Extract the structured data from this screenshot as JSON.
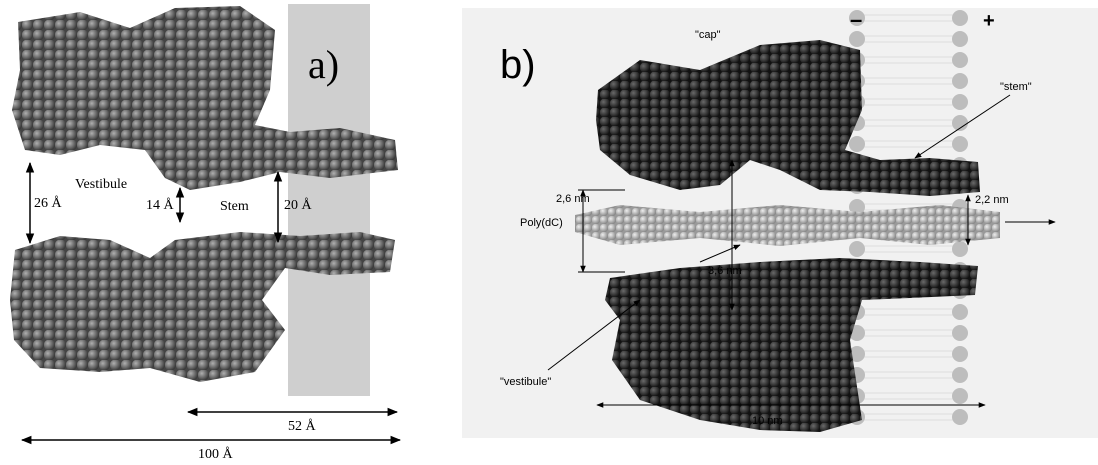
{
  "panel_a": {
    "label": "a)",
    "vestibule": "Vestibule",
    "stem": "Stem",
    "dims": [
      "26 Å",
      "14 Å",
      "20 Å",
      "52 Å",
      "100 Å"
    ]
  },
  "panel_b": {
    "label": "b)",
    "cap": "\"cap\"",
    "stem": "\"stem\"",
    "vestibule": "\"vestibule\"",
    "polymer": "Poly(dC)",
    "dims": [
      "2,6 nm",
      "3,6 nm",
      "2,2 nm",
      "10 nm"
    ],
    "minus": "–",
    "plus": "+"
  }
}
